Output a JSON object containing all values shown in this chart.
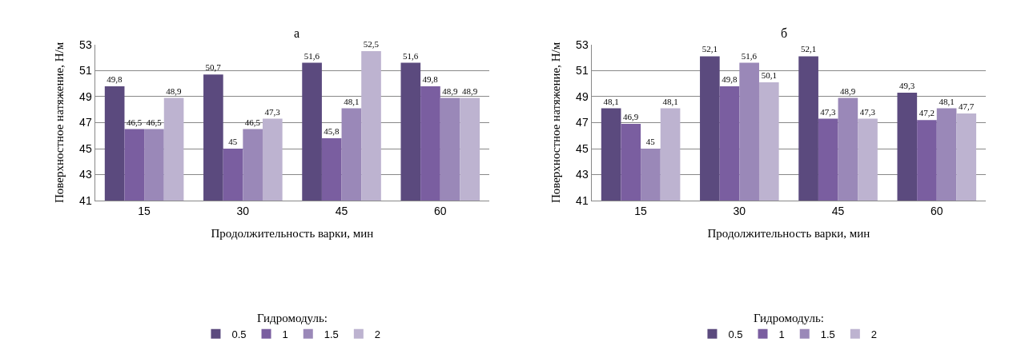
{
  "chart_data": [
    {
      "type": "bar",
      "title": "а",
      "xlabel": "Продолжительность варки, мин",
      "ylabel": "Поверхностное натяжение, Н/м",
      "legend_title": "Гидромодуль:",
      "categories": [
        "15",
        "30",
        "45",
        "60"
      ],
      "ylim": [
        41,
        53
      ],
      "yticks": [
        41,
        43,
        45,
        47,
        49,
        51,
        53
      ],
      "grid": "y",
      "legend": "bottom",
      "series": [
        {
          "name": "0.5",
          "color": "#5b4a7e",
          "values": [
            49.8,
            50.7,
            51.6,
            51.6
          ],
          "value_labels": [
            "49,8",
            "50,7",
            "51,6",
            "51,6"
          ]
        },
        {
          "name": "1",
          "color": "#7a5ea0",
          "values": [
            46.5,
            45,
            45.8,
            49.8
          ],
          "value_labels": [
            "46,5",
            "45",
            "45,8",
            "49,8"
          ]
        },
        {
          "name": "1.5",
          "color": "#9a88b8",
          "values": [
            46.5,
            46.5,
            48.1,
            48.9
          ],
          "value_labels": [
            "46,5",
            "46,5",
            "48,1",
            "48,9"
          ]
        },
        {
          "name": "2",
          "color": "#bdb3d0",
          "values": [
            48.9,
            47.3,
            52.5,
            48.9
          ],
          "value_labels": [
            "48,9",
            "47,3",
            "52,5",
            "48,9"
          ]
        }
      ]
    },
    {
      "type": "bar",
      "title": "б",
      "xlabel": "Продолжительность варки, мин",
      "ylabel": "Поверхностное натяжение, Н/м",
      "legend_title": "Гидромодуль:",
      "categories": [
        "15",
        "30",
        "45",
        "60"
      ],
      "ylim": [
        41,
        53
      ],
      "yticks": [
        41,
        43,
        45,
        47,
        49,
        51,
        53
      ],
      "grid": "y",
      "legend": "bottom",
      "series": [
        {
          "name": "0.5",
          "color": "#5b4a7e",
          "values": [
            48.1,
            52.1,
            52.1,
            49.3
          ],
          "value_labels": [
            "48,1",
            "52,1",
            "52,1",
            "49,3"
          ]
        },
        {
          "name": "1",
          "color": "#7a5ea0",
          "values": [
            46.9,
            49.8,
            47.3,
            47.2
          ],
          "value_labels": [
            "46,9",
            "49,8",
            "47,3",
            "47,2"
          ]
        },
        {
          "name": "1.5",
          "color": "#9a88b8",
          "values": [
            45,
            51.6,
            48.9,
            48.1
          ],
          "value_labels": [
            "45",
            "51,6",
            "48,9",
            "48,1"
          ]
        },
        {
          "name": "2",
          "color": "#bdb3d0",
          "values": [
            48.1,
            50.1,
            47.3,
            47.7
          ],
          "value_labels": [
            "48,1",
            "50,1",
            "47,3",
            "47,7"
          ]
        }
      ]
    }
  ]
}
